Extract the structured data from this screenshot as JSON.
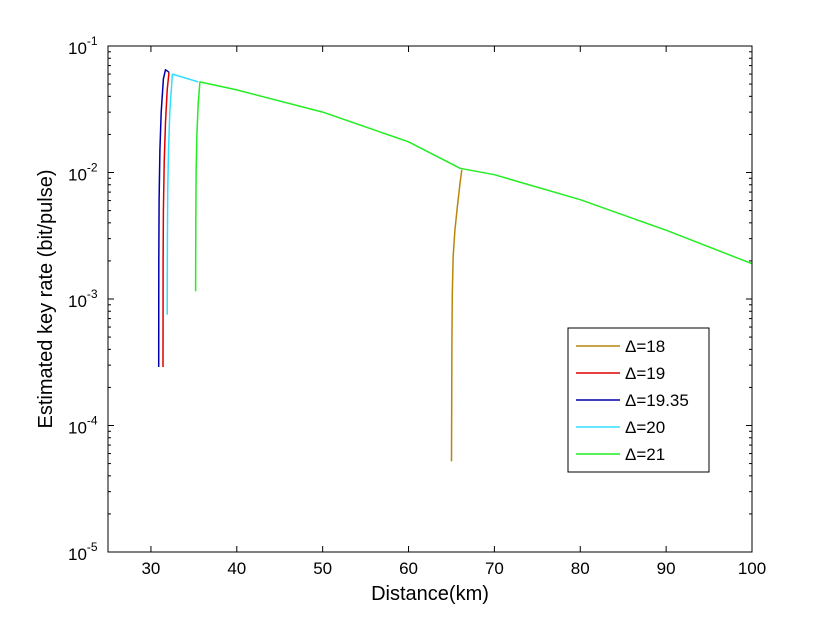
{
  "chart_data": {
    "type": "line",
    "title": "",
    "xlabel": "Distance(km)",
    "ylabel": "Estimated key rate (bit/pulse)",
    "xlim": [
      25,
      100
    ],
    "ylim": [
      1e-05,
      0.1
    ],
    "yscale": "log",
    "grid": false,
    "legend_position": "right",
    "x_ticks": [
      "30",
      "40",
      "50",
      "60",
      "70",
      "80",
      "90",
      "100"
    ],
    "y_ticks": [
      {
        "base": "10",
        "exp": "-5"
      },
      {
        "base": "10",
        "exp": "-4"
      },
      {
        "base": "10",
        "exp": "-3"
      },
      {
        "base": "10",
        "exp": "-2"
      },
      {
        "base": "10",
        "exp": "-1"
      }
    ],
    "series": [
      {
        "name": "Δ=18",
        "color": "#B8860B",
        "x": [
          65.0,
          65.05,
          65.1,
          65.2,
          65.4,
          65.7,
          66.0,
          66.2
        ],
        "y": [
          5.2e-05,
          0.00045,
          0.0011,
          0.0022,
          0.0035,
          0.0055,
          0.0083,
          0.0105
        ]
      },
      {
        "name": "Δ=19",
        "color": "#DD0000",
        "x": [
          31.4,
          31.42,
          31.45,
          31.55,
          31.7,
          31.9,
          32.1
        ],
        "y": [
          0.00029,
          0.002,
          0.005,
          0.012,
          0.025,
          0.045,
          0.062
        ]
      },
      {
        "name": "Δ=19.35",
        "color": "#0000AA",
        "x": [
          30.9,
          30.92,
          30.95,
          31.05,
          31.2,
          31.45,
          31.7,
          32.1
        ],
        "y": [
          0.00029,
          0.002,
          0.006,
          0.015,
          0.03,
          0.055,
          0.065,
          0.062
        ]
      },
      {
        "name": "Δ=20",
        "color": "#33DDFF",
        "x": [
          31.9,
          31.92,
          31.95,
          32.05,
          32.2,
          32.5,
          35.5
        ],
        "y": [
          0.00075,
          0.003,
          0.007,
          0.015,
          0.03,
          0.06,
          0.052
        ]
      },
      {
        "name": "Δ=21",
        "color": "#22EE22",
        "x": [
          35.2,
          35.22,
          35.26,
          35.35,
          35.5,
          35.7,
          40,
          50,
          60,
          66,
          70,
          80,
          90,
          100
        ],
        "y": [
          0.00115,
          0.004,
          0.01,
          0.02,
          0.035,
          0.052,
          0.045,
          0.03,
          0.0175,
          0.0108,
          0.0096,
          0.0061,
          0.0035,
          0.0019
        ]
      }
    ]
  }
}
